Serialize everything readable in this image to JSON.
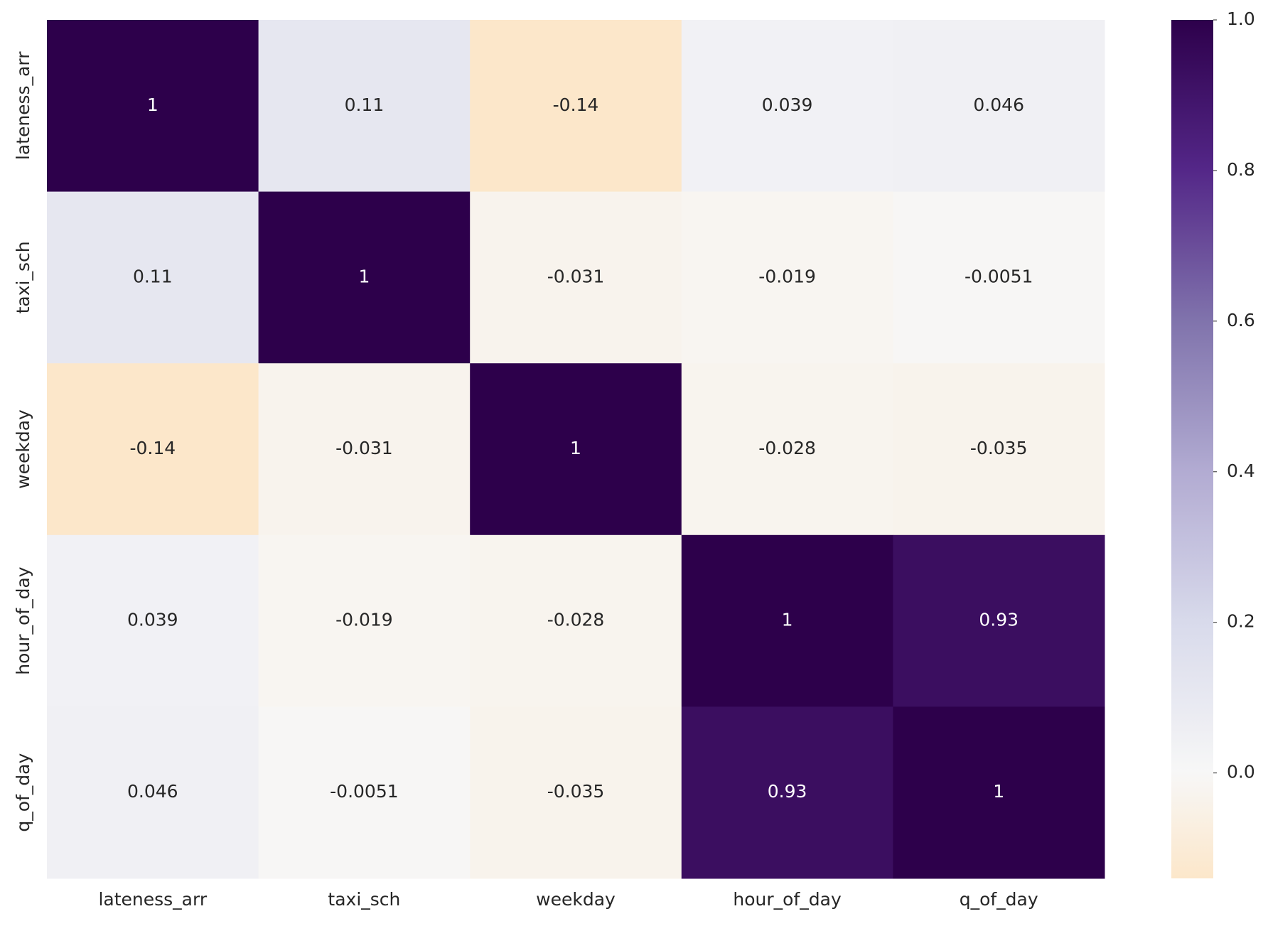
{
  "chart_data": {
    "type": "heatmap",
    "x_categories": [
      "lateness_arr",
      "taxi_sch",
      "weekday",
      "hour_of_day",
      "q_of_day"
    ],
    "y_categories": [
      "lateness_arr",
      "taxi_sch",
      "weekday",
      "hour_of_day",
      "q_of_day"
    ],
    "values": [
      [
        1,
        0.11,
        -0.14,
        0.039,
        0.046
      ],
      [
        0.11,
        1,
        -0.031,
        -0.019,
        -0.0051
      ],
      [
        -0.14,
        -0.031,
        1,
        -0.028,
        -0.035
      ],
      [
        0.039,
        -0.019,
        -0.028,
        1,
        0.93
      ],
      [
        0.046,
        -0.0051,
        -0.035,
        0.93,
        1
      ]
    ],
    "colormap": "PuOr",
    "center": 0,
    "zlim": [
      -0.14,
      1
    ],
    "zticks": [
      {
        "value": 0,
        "label": "0.0"
      },
      0.2,
      0.4,
      0.6,
      0.8,
      {
        "value": 1,
        "label": "1.0"
      }
    ]
  }
}
